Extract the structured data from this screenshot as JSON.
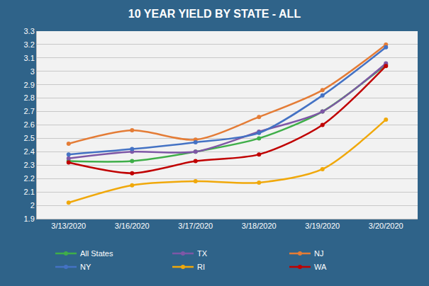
{
  "chart_data": {
    "type": "line",
    "title": "10 YEAR YIELD BY STATE - ALL",
    "categories": [
      "3/13/2020",
      "3/16/2020",
      "3/17/2020",
      "3/18/2020",
      "3/19/2020",
      "3/20/2020"
    ],
    "series": [
      {
        "name": "All States",
        "color": "#3fae49",
        "values": [
          2.33,
          2.33,
          2.4,
          2.5,
          2.7,
          3.05
        ]
      },
      {
        "name": "TX",
        "color": "#7e57a6",
        "values": [
          2.35,
          2.4,
          2.4,
          2.55,
          2.7,
          3.06
        ]
      },
      {
        "name": "NJ",
        "color": "#e47c36",
        "values": [
          2.46,
          2.56,
          2.49,
          2.66,
          2.86,
          3.2
        ]
      },
      {
        "name": "NY",
        "color": "#4472c4",
        "values": [
          2.38,
          2.42,
          2.47,
          2.54,
          2.82,
          3.18
        ]
      },
      {
        "name": "RI",
        "color": "#f0a80a",
        "values": [
          2.02,
          2.15,
          2.18,
          2.17,
          2.27,
          2.64
        ]
      },
      {
        "name": "WA",
        "color": "#c00000",
        "values": [
          2.32,
          2.24,
          2.33,
          2.38,
          2.6,
          3.04
        ]
      }
    ],
    "ylim": [
      1.9,
      3.3
    ],
    "yticks": [
      1.9,
      2,
      2.1,
      2.2,
      2.3,
      2.4,
      2.5,
      2.6,
      2.7,
      2.8,
      2.9,
      3,
      3.1,
      3.2,
      3.3
    ],
    "grid": true,
    "legend": "bottom",
    "marker": "circle"
  }
}
